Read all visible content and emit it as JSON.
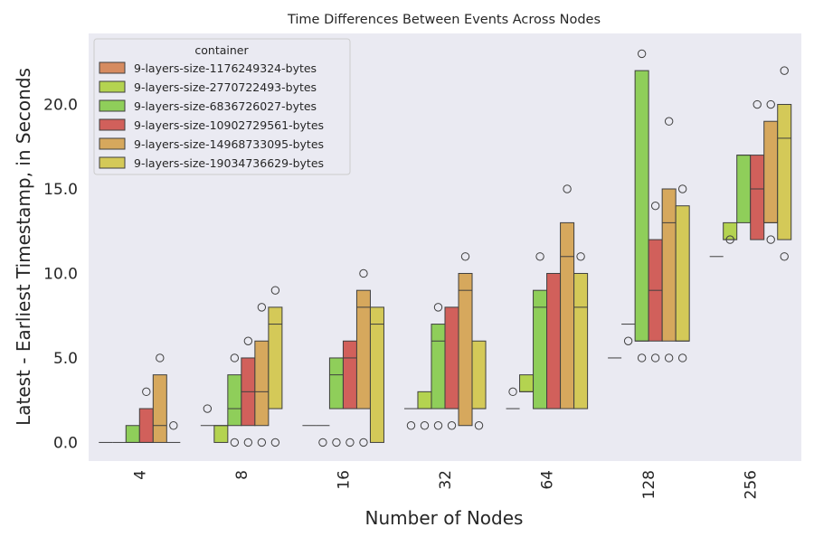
{
  "chart_data": {
    "type": "boxplot",
    "title": "Time Differences Between Events Across Nodes",
    "xlabel": "Number of Nodes",
    "ylabel": "Latest - Earliest Timestamp, in Seconds",
    "ylim": [
      -1.1,
      24.2
    ],
    "yticks": [
      0.0,
      5.0,
      10.0,
      15.0,
      20.0
    ],
    "ytick_labels": [
      "0.0",
      "5.0",
      "10.0",
      "15.0",
      "20.0"
    ],
    "categories": [
      "4",
      "8",
      "16",
      "32",
      "64",
      "128",
      "256"
    ],
    "grid": false,
    "legend": {
      "title": "container",
      "placement": "top-left"
    },
    "series": [
      {
        "name": "9-layers-size-1176249324-bytes",
        "color": "#d68b60",
        "boxes": [
          {
            "q1": 0,
            "median": 0,
            "q3": 0,
            "outliers": []
          },
          {
            "q1": 1,
            "median": 1,
            "q3": 1,
            "outliers": [
              2
            ]
          },
          {
            "q1": 1,
            "median": 1,
            "q3": 1,
            "outliers": []
          },
          {
            "q1": 2,
            "median": 2,
            "q3": 2,
            "outliers": [
              1
            ]
          },
          {
            "q1": 2,
            "median": 2,
            "q3": 2,
            "outliers": [
              3
            ]
          },
          {
            "q1": 5,
            "median": 5,
            "q3": 5,
            "outliers": []
          },
          {
            "q1": 11,
            "median": 11,
            "q3": 11,
            "outliers": []
          }
        ]
      },
      {
        "name": "9-layers-size-2770722493-bytes",
        "color": "#b4d350",
        "boxes": [
          {
            "q1": 0,
            "median": 0,
            "q3": 0,
            "outliers": []
          },
          {
            "q1": 0,
            "median": 1,
            "q3": 1,
            "outliers": []
          },
          {
            "q1": 1,
            "median": 1,
            "q3": 1,
            "outliers": [
              0
            ]
          },
          {
            "q1": 2,
            "median": 2,
            "q3": 3,
            "outliers": [
              1
            ]
          },
          {
            "q1": 3,
            "median": 3,
            "q3": 4,
            "outliers": []
          },
          {
            "q1": 7,
            "median": 7,
            "q3": 7,
            "outliers": [
              6
            ]
          },
          {
            "q1": 12,
            "median": 12,
            "q3": 13,
            "outliers": [
              12
            ]
          }
        ]
      },
      {
        "name": "9-layers-size-6836726027-bytes",
        "color": "#8fce5a",
        "boxes": [
          {
            "q1": 0,
            "median": 0,
            "q3": 1,
            "outliers": []
          },
          {
            "q1": 1,
            "median": 2,
            "q3": 4,
            "outliers": [
              0,
              5
            ]
          },
          {
            "q1": 2,
            "median": 4,
            "q3": 5,
            "outliers": [
              0
            ]
          },
          {
            "q1": 2,
            "median": 6,
            "q3": 7,
            "outliers": [
              1,
              8
            ]
          },
          {
            "q1": 2,
            "median": 8,
            "q3": 9,
            "outliers": [
              11
            ]
          },
          {
            "q1": 6,
            "median": 6,
            "q3": 22,
            "outliers": [
              5,
              23
            ]
          },
          {
            "q1": 13,
            "median": 17,
            "q3": 17,
            "outliers": []
          }
        ]
      },
      {
        "name": "9-layers-size-10902729561-bytes",
        "color": "#d1605b",
        "boxes": [
          {
            "q1": 0,
            "median": 0,
            "q3": 2,
            "outliers": [
              3
            ]
          },
          {
            "q1": 1,
            "median": 3,
            "q3": 5,
            "outliers": [
              0,
              6
            ]
          },
          {
            "q1": 2,
            "median": 5,
            "q3": 6,
            "outliers": [
              0
            ]
          },
          {
            "q1": 2,
            "median": 2,
            "q3": 8,
            "outliers": [
              1
            ]
          },
          {
            "q1": 2,
            "median": 2,
            "q3": 10,
            "outliers": []
          },
          {
            "q1": 6,
            "median": 9,
            "q3": 12,
            "outliers": [
              5,
              14
            ]
          },
          {
            "q1": 12,
            "median": 15,
            "q3": 17,
            "outliers": [
              20
            ]
          }
        ]
      },
      {
        "name": "9-layers-size-14968733095-bytes",
        "color": "#d6a85d",
        "boxes": [
          {
            "q1": 0,
            "median": 1,
            "q3": 4,
            "outliers": [
              5
            ]
          },
          {
            "q1": 1,
            "median": 3,
            "q3": 6,
            "outliers": [
              0,
              8
            ]
          },
          {
            "q1": 2,
            "median": 8,
            "q3": 9,
            "outliers": [
              0,
              10
            ]
          },
          {
            "q1": 1,
            "median": 9,
            "q3": 10,
            "outliers": [
              11
            ]
          },
          {
            "q1": 2,
            "median": 11,
            "q3": 13,
            "outliers": [
              15
            ]
          },
          {
            "q1": 6,
            "median": 13,
            "q3": 15,
            "outliers": [
              5,
              19
            ]
          },
          {
            "q1": 13,
            "median": 13,
            "q3": 19,
            "outliers": [
              12,
              20
            ]
          }
        ]
      },
      {
        "name": "9-layers-size-19034736629-bytes",
        "color": "#d4c958",
        "boxes": [
          {
            "q1": 0,
            "median": 0,
            "q3": 0,
            "outliers": [
              1
            ]
          },
          {
            "q1": 2,
            "median": 7,
            "q3": 8,
            "outliers": [
              0,
              9
            ]
          },
          {
            "q1": 0,
            "median": 7,
            "q3": 8,
            "outliers": []
          },
          {
            "q1": 2,
            "median": 2,
            "q3": 6,
            "outliers": [
              1
            ]
          },
          {
            "q1": 2,
            "median": 8,
            "q3": 10,
            "outliers": [
              11
            ]
          },
          {
            "q1": 6,
            "median": 6,
            "q3": 14,
            "outliers": [
              5,
              15
            ]
          },
          {
            "q1": 12,
            "median": 18,
            "q3": 20,
            "outliers": [
              11,
              22
            ]
          }
        ]
      }
    ]
  }
}
